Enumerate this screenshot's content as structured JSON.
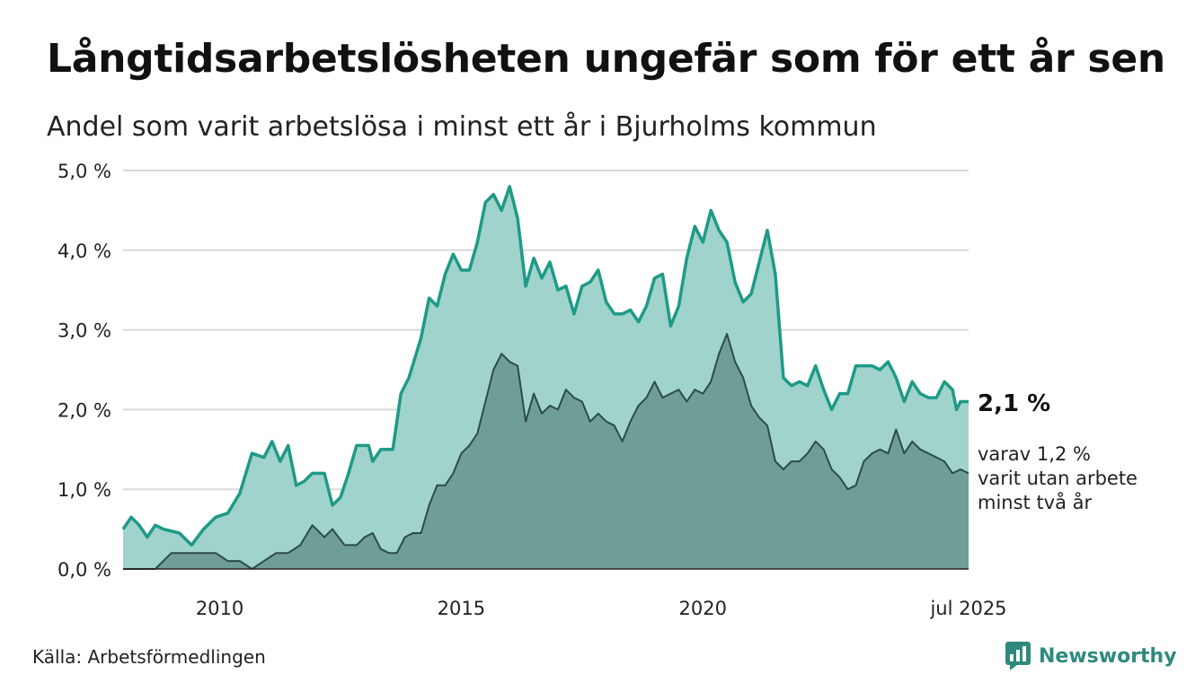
{
  "header": {
    "title": "Långtidsarbetslösheten ungefär som för ett år sen",
    "subtitle": "Andel som varit arbetslösa i minst ett år i Bjurholms kommun"
  },
  "annotations": {
    "end_value": "2,1 %",
    "note_lines": [
      "varav 1,2 %",
      "varit utan arbete",
      "minst två år"
    ]
  },
  "footer": {
    "source": "Källa: Arbetsförmedlingen",
    "brand": "Newsworthy"
  },
  "colors": {
    "outer_fill": "#9fd3cc",
    "outer_line": "#1e9a86",
    "inner_fill": "#6f9e97",
    "inner_line": "#2e4b46",
    "grid": "#d9d9d9",
    "brand": "#2f8a7c"
  },
  "chart_data": {
    "type": "area",
    "x_range": [
      "2008-01",
      "2025-07"
    ],
    "ylim": [
      0,
      5
    ],
    "y_ticks": [
      {
        "value": 0,
        "label": "0,0 %"
      },
      {
        "value": 1,
        "label": "1,0 %"
      },
      {
        "value": 2,
        "label": "2,0 %"
      },
      {
        "value": 3,
        "label": "3,0 %"
      },
      {
        "value": 4,
        "label": "4,0 %"
      },
      {
        "value": 5,
        "label": "5,0 %"
      }
    ],
    "x_ticks": [
      {
        "date": "2010-01",
        "label": "2010"
      },
      {
        "date": "2015-01",
        "label": "2015"
      },
      {
        "date": "2020-01",
        "label": "2020"
      },
      {
        "date": "2025-07",
        "label": "jul 2025"
      }
    ],
    "grid": true,
    "series": [
      {
        "key": "minst_ett_ar",
        "points": [
          [
            "2008-01",
            0.5
          ],
          [
            "2008-03",
            0.65
          ],
          [
            "2008-05",
            0.55
          ],
          [
            "2008-07",
            0.4
          ],
          [
            "2008-09",
            0.55
          ],
          [
            "2008-11",
            0.5
          ],
          [
            "2009-03",
            0.45
          ],
          [
            "2009-06",
            0.3
          ],
          [
            "2009-09",
            0.5
          ],
          [
            "2009-12",
            0.65
          ],
          [
            "2010-03",
            0.7
          ],
          [
            "2010-06",
            0.95
          ],
          [
            "2010-09",
            1.45
          ],
          [
            "2010-12",
            1.4
          ],
          [
            "2011-02",
            1.6
          ],
          [
            "2011-04",
            1.35
          ],
          [
            "2011-06",
            1.55
          ],
          [
            "2011-08",
            1.05
          ],
          [
            "2011-10",
            1.1
          ],
          [
            "2011-12",
            1.2
          ],
          [
            "2012-03",
            1.2
          ],
          [
            "2012-05",
            0.8
          ],
          [
            "2012-07",
            0.9
          ],
          [
            "2012-09",
            1.2
          ],
          [
            "2012-11",
            1.55
          ],
          [
            "2013-02",
            1.55
          ],
          [
            "2013-03",
            1.35
          ],
          [
            "2013-05",
            1.5
          ],
          [
            "2013-08",
            1.5
          ],
          [
            "2013-10",
            2.2
          ],
          [
            "2013-12",
            2.4
          ],
          [
            "2014-03",
            2.9
          ],
          [
            "2014-05",
            3.4
          ],
          [
            "2014-07",
            3.3
          ],
          [
            "2014-09",
            3.7
          ],
          [
            "2014-11",
            3.95
          ],
          [
            "2015-01",
            3.75
          ],
          [
            "2015-03",
            3.75
          ],
          [
            "2015-05",
            4.1
          ],
          [
            "2015-07",
            4.6
          ],
          [
            "2015-09",
            4.7
          ],
          [
            "2015-11",
            4.5
          ],
          [
            "2016-01",
            4.8
          ],
          [
            "2016-03",
            4.4
          ],
          [
            "2016-05",
            3.55
          ],
          [
            "2016-07",
            3.9
          ],
          [
            "2016-09",
            3.65
          ],
          [
            "2016-11",
            3.85
          ],
          [
            "2017-01",
            3.5
          ],
          [
            "2017-03",
            3.55
          ],
          [
            "2017-05",
            3.2
          ],
          [
            "2017-07",
            3.55
          ],
          [
            "2017-09",
            3.6
          ],
          [
            "2017-11",
            3.75
          ],
          [
            "2018-01",
            3.35
          ],
          [
            "2018-03",
            3.2
          ],
          [
            "2018-05",
            3.2
          ],
          [
            "2018-07",
            3.25
          ],
          [
            "2018-09",
            3.1
          ],
          [
            "2018-11",
            3.3
          ],
          [
            "2019-01",
            3.65
          ],
          [
            "2019-03",
            3.7
          ],
          [
            "2019-05",
            3.05
          ],
          [
            "2019-07",
            3.3
          ],
          [
            "2019-09",
            3.9
          ],
          [
            "2019-11",
            4.3
          ],
          [
            "2020-01",
            4.1
          ],
          [
            "2020-03",
            4.5
          ],
          [
            "2020-05",
            4.25
          ],
          [
            "2020-07",
            4.1
          ],
          [
            "2020-09",
            3.6
          ],
          [
            "2020-11",
            3.35
          ],
          [
            "2021-01",
            3.45
          ],
          [
            "2021-03",
            3.85
          ],
          [
            "2021-05",
            4.25
          ],
          [
            "2021-07",
            3.7
          ],
          [
            "2021-09",
            2.4
          ],
          [
            "2021-11",
            2.3
          ],
          [
            "2022-01",
            2.35
          ],
          [
            "2022-03",
            2.3
          ],
          [
            "2022-05",
            2.55
          ],
          [
            "2022-07",
            2.25
          ],
          [
            "2022-09",
            2.0
          ],
          [
            "2022-11",
            2.2
          ],
          [
            "2023-01",
            2.2
          ],
          [
            "2023-03",
            2.55
          ],
          [
            "2023-05",
            2.55
          ],
          [
            "2023-07",
            2.55
          ],
          [
            "2023-09",
            2.5
          ],
          [
            "2023-11",
            2.6
          ],
          [
            "2024-01",
            2.4
          ],
          [
            "2024-03",
            2.1
          ],
          [
            "2024-05",
            2.35
          ],
          [
            "2024-07",
            2.2
          ],
          [
            "2024-09",
            2.15
          ],
          [
            "2024-11",
            2.15
          ],
          [
            "2025-01",
            2.35
          ],
          [
            "2025-03",
            2.25
          ],
          [
            "2025-04",
            2.0
          ],
          [
            "2025-05",
            2.1
          ],
          [
            "2025-07",
            2.1
          ]
        ]
      },
      {
        "key": "minst_tva_ar",
        "points": [
          [
            "2008-01",
            0.0
          ],
          [
            "2008-06",
            0.0
          ],
          [
            "2008-09",
            0.0
          ],
          [
            "2008-11",
            0.1
          ],
          [
            "2009-01",
            0.2
          ],
          [
            "2009-06",
            0.2
          ],
          [
            "2009-12",
            0.2
          ],
          [
            "2010-03",
            0.1
          ],
          [
            "2010-06",
            0.1
          ],
          [
            "2010-09",
            0.0
          ],
          [
            "2010-12",
            0.1
          ],
          [
            "2011-03",
            0.2
          ],
          [
            "2011-06",
            0.2
          ],
          [
            "2011-09",
            0.3
          ],
          [
            "2011-12",
            0.55
          ],
          [
            "2012-03",
            0.4
          ],
          [
            "2012-05",
            0.5
          ],
          [
            "2012-08",
            0.3
          ],
          [
            "2012-11",
            0.3
          ],
          [
            "2013-01",
            0.4
          ],
          [
            "2013-03",
            0.45
          ],
          [
            "2013-05",
            0.25
          ],
          [
            "2013-07",
            0.2
          ],
          [
            "2013-09",
            0.2
          ],
          [
            "2013-11",
            0.4
          ],
          [
            "2014-01",
            0.45
          ],
          [
            "2014-03",
            0.45
          ],
          [
            "2014-05",
            0.8
          ],
          [
            "2014-07",
            1.05
          ],
          [
            "2014-09",
            1.05
          ],
          [
            "2014-11",
            1.2
          ],
          [
            "2015-01",
            1.45
          ],
          [
            "2015-03",
            1.55
          ],
          [
            "2015-05",
            1.7
          ],
          [
            "2015-07",
            2.1
          ],
          [
            "2015-09",
            2.5
          ],
          [
            "2015-11",
            2.7
          ],
          [
            "2016-01",
            2.6
          ],
          [
            "2016-03",
            2.55
          ],
          [
            "2016-05",
            1.85
          ],
          [
            "2016-07",
            2.2
          ],
          [
            "2016-09",
            1.95
          ],
          [
            "2016-11",
            2.05
          ],
          [
            "2017-01",
            2.0
          ],
          [
            "2017-03",
            2.25
          ],
          [
            "2017-05",
            2.15
          ],
          [
            "2017-07",
            2.1
          ],
          [
            "2017-09",
            1.85
          ],
          [
            "2017-11",
            1.95
          ],
          [
            "2018-01",
            1.85
          ],
          [
            "2018-03",
            1.8
          ],
          [
            "2018-05",
            1.6
          ],
          [
            "2018-07",
            1.85
          ],
          [
            "2018-09",
            2.05
          ],
          [
            "2018-11",
            2.15
          ],
          [
            "2019-01",
            2.35
          ],
          [
            "2019-03",
            2.15
          ],
          [
            "2019-05",
            2.2
          ],
          [
            "2019-07",
            2.25
          ],
          [
            "2019-09",
            2.1
          ],
          [
            "2019-11",
            2.25
          ],
          [
            "2020-01",
            2.2
          ],
          [
            "2020-03",
            2.35
          ],
          [
            "2020-05",
            2.7
          ],
          [
            "2020-07",
            2.95
          ],
          [
            "2020-09",
            2.6
          ],
          [
            "2020-11",
            2.4
          ],
          [
            "2021-01",
            2.05
          ],
          [
            "2021-03",
            1.9
          ],
          [
            "2021-05",
            1.8
          ],
          [
            "2021-07",
            1.35
          ],
          [
            "2021-09",
            1.25
          ],
          [
            "2021-11",
            1.35
          ],
          [
            "2022-01",
            1.35
          ],
          [
            "2022-03",
            1.45
          ],
          [
            "2022-05",
            1.6
          ],
          [
            "2022-07",
            1.5
          ],
          [
            "2022-09",
            1.25
          ],
          [
            "2022-11",
            1.15
          ],
          [
            "2023-01",
            1.0
          ],
          [
            "2023-03",
            1.05
          ],
          [
            "2023-05",
            1.35
          ],
          [
            "2023-07",
            1.45
          ],
          [
            "2023-09",
            1.5
          ],
          [
            "2023-11",
            1.45
          ],
          [
            "2024-01",
            1.75
          ],
          [
            "2024-03",
            1.45
          ],
          [
            "2024-05",
            1.6
          ],
          [
            "2024-07",
            1.5
          ],
          [
            "2024-09",
            1.45
          ],
          [
            "2024-11",
            1.4
          ],
          [
            "2025-01",
            1.35
          ],
          [
            "2025-03",
            1.2
          ],
          [
            "2025-05",
            1.25
          ],
          [
            "2025-07",
            1.2
          ]
        ]
      }
    ]
  }
}
